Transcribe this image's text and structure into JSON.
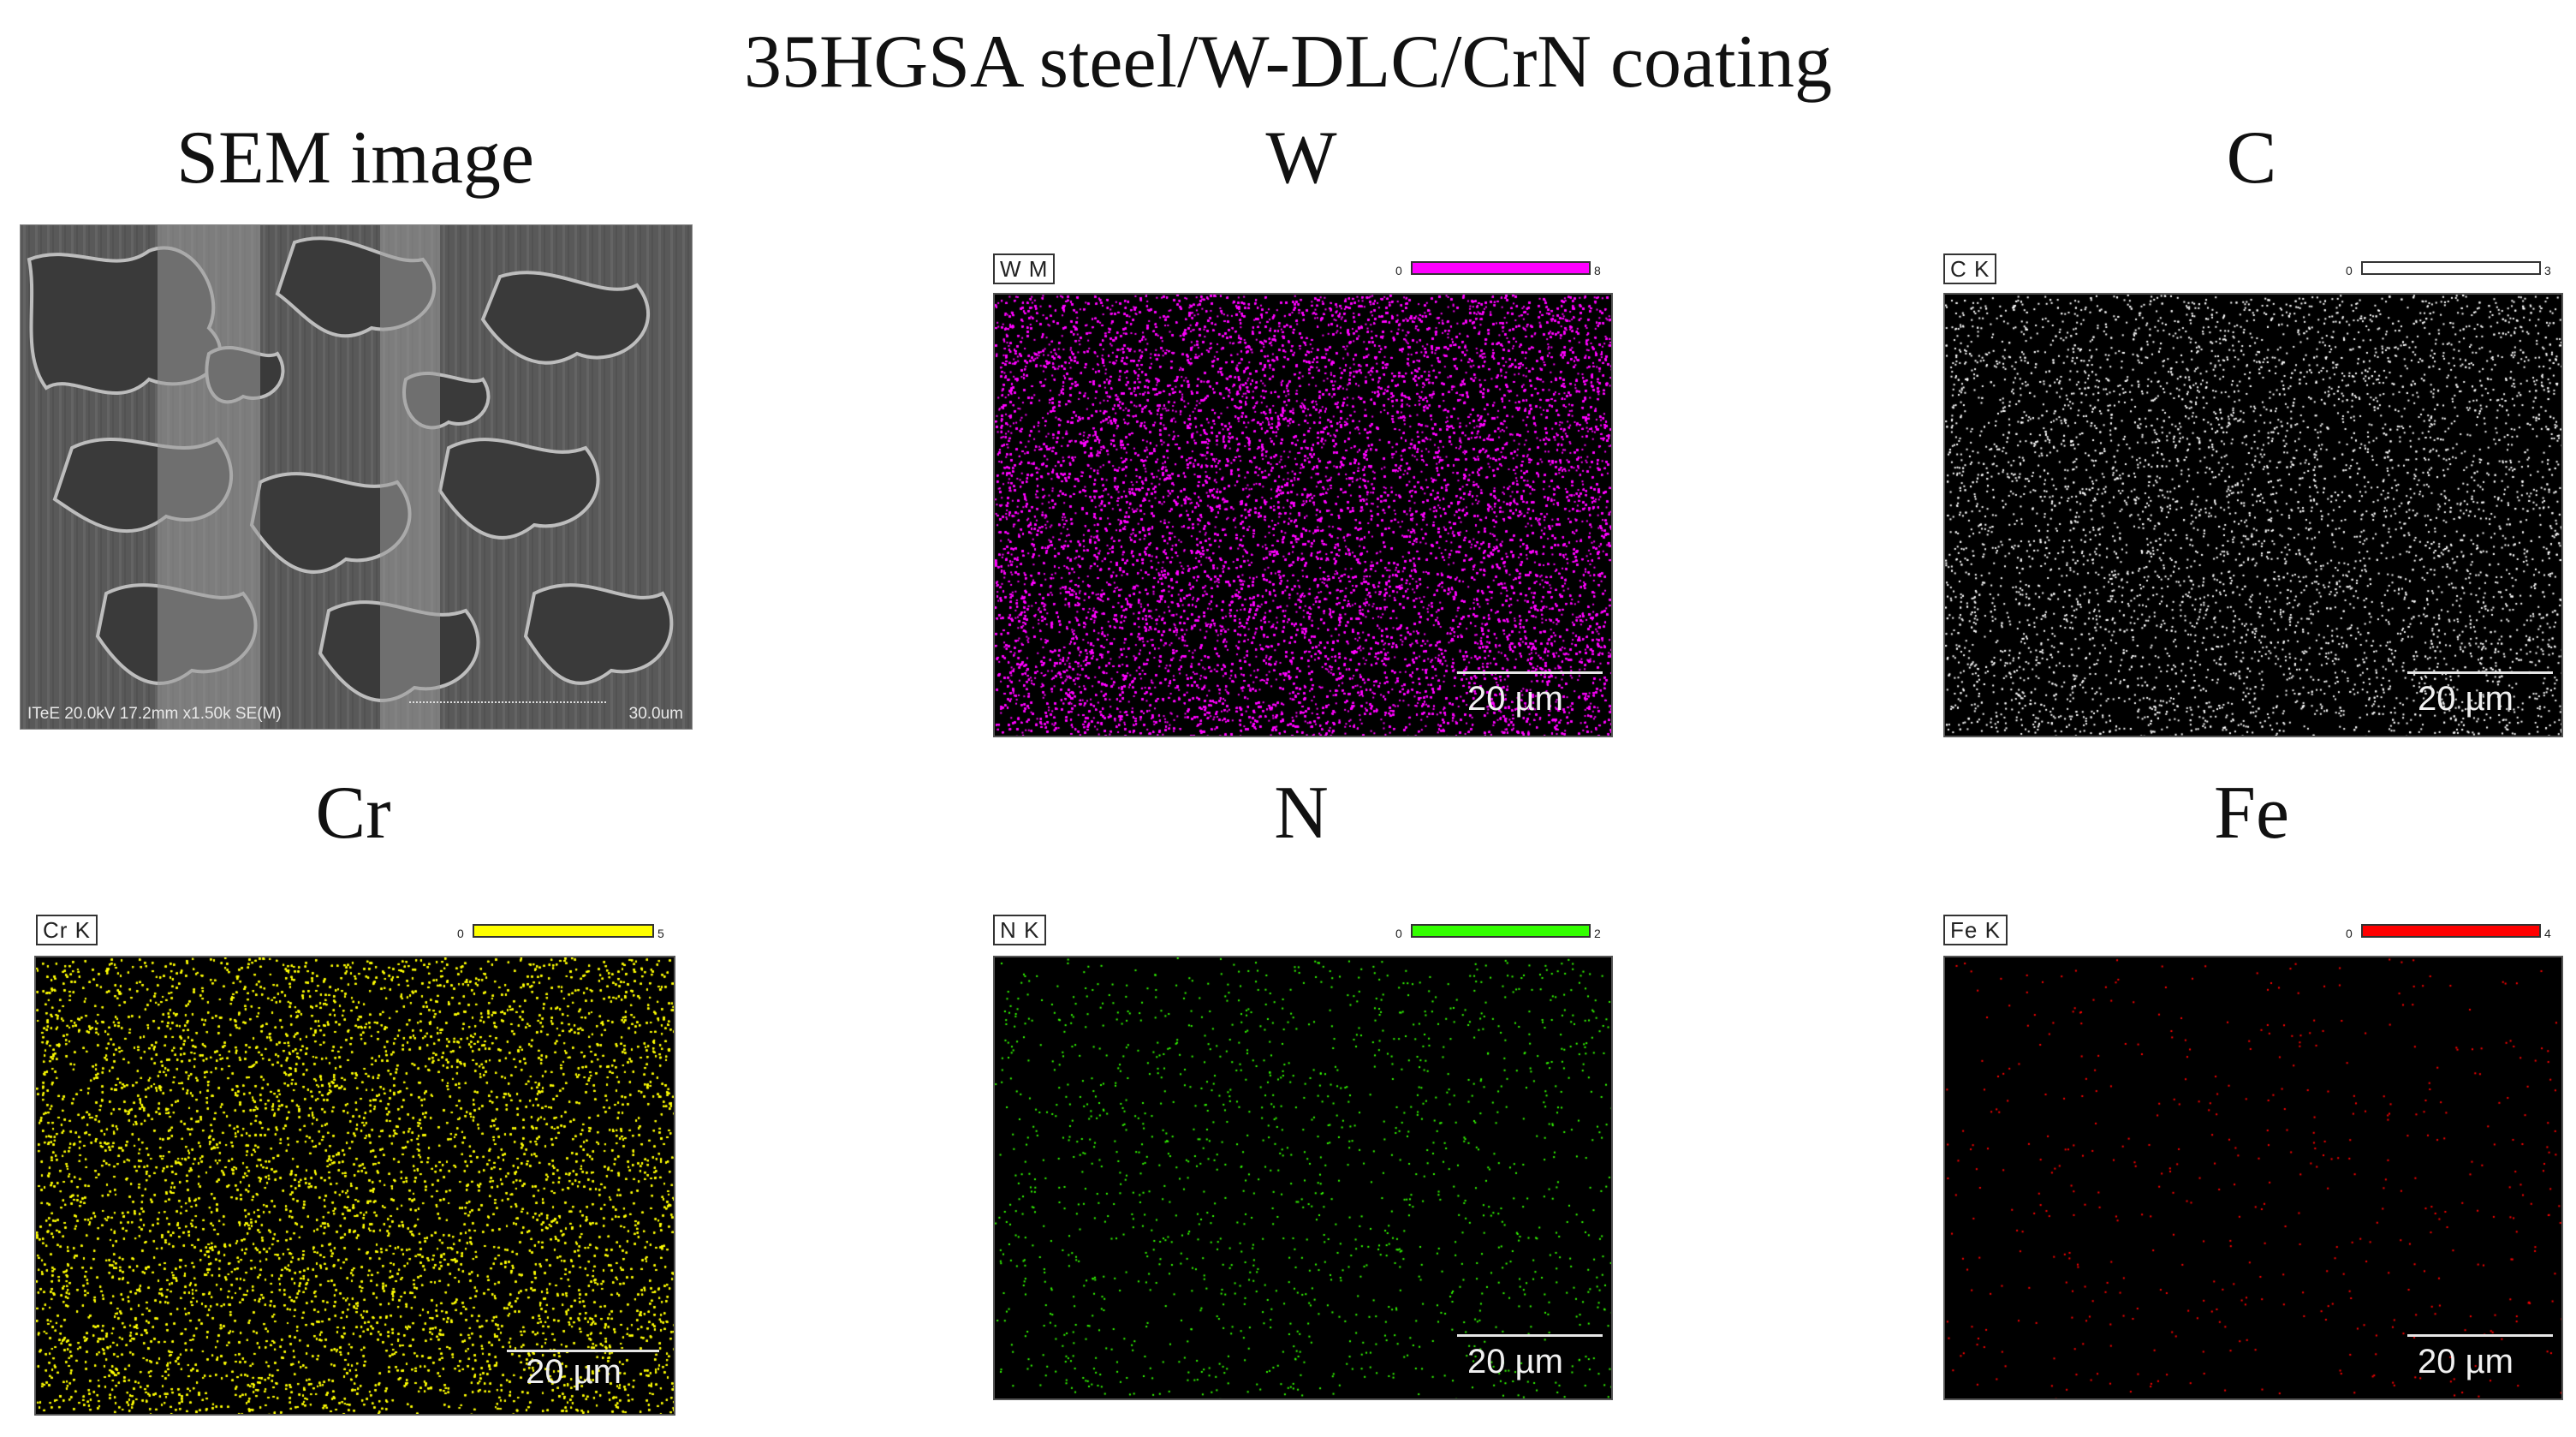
{
  "title": "35HGSA steel/W-DLC/CrN coating",
  "sem": {
    "heading": "SEM image",
    "info": "ITeE 20.0kV 17.2mm x1.50k SE(M)",
    "scale": "30.0um"
  },
  "maps": [
    {
      "heading": "W",
      "label": "W M",
      "min": "0",
      "max": "8",
      "color": "#ff00ff",
      "density": 0.62,
      "scale": "20 µm"
    },
    {
      "heading": "C",
      "label": "C K",
      "min": "0",
      "max": "3",
      "color": "#ffffff",
      "density": 0.05,
      "scale": "20 µm"
    },
    {
      "heading": "Cr",
      "label": "Cr K",
      "min": "0",
      "max": "5",
      "color": "#ffff00",
      "density": 0.22,
      "scale": "20 µm"
    },
    {
      "heading": "N",
      "label": "N K",
      "min": "0",
      "max": "2",
      "color": "#33ff00",
      "density": 0.012,
      "scale": "20 µm"
    },
    {
      "heading": "Fe",
      "label": "Fe K",
      "min": "0",
      "max": "4",
      "color": "#ff0000",
      "density": 0.004,
      "scale": "20 µm"
    }
  ]
}
